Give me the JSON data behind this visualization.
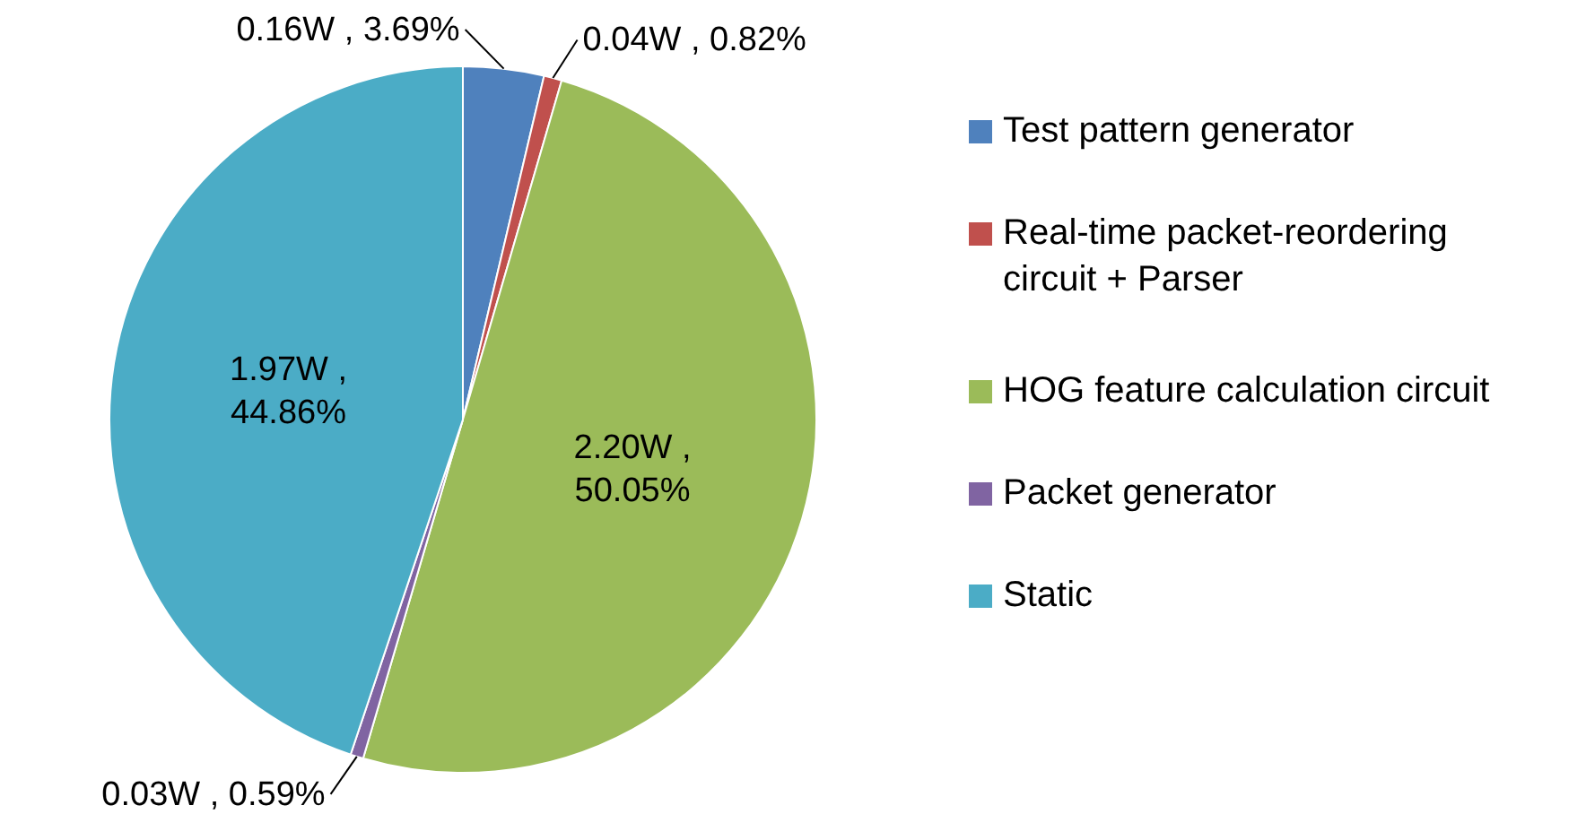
{
  "chart_data": {
    "type": "pie",
    "categories": [
      "Test pattern generator",
      "Real-time packet-reordering circuit + Parser",
      "HOG feature calculation circuit",
      "Packet generator",
      "Static"
    ],
    "values": [
      3.69,
      0.82,
      50.05,
      0.59,
      44.86
    ],
    "value_labels": [
      "0.16W , 3.69%",
      "0.04W , 0.82%",
      "2.20W , 50.05%",
      "0.03W , 0.59%",
      "1.97W , 44.86%"
    ],
    "colors": [
      "#4f81bd",
      "#c0504d",
      "#9bbb59",
      "#8064a2",
      "#4bacc6"
    ],
    "legend": "right"
  }
}
